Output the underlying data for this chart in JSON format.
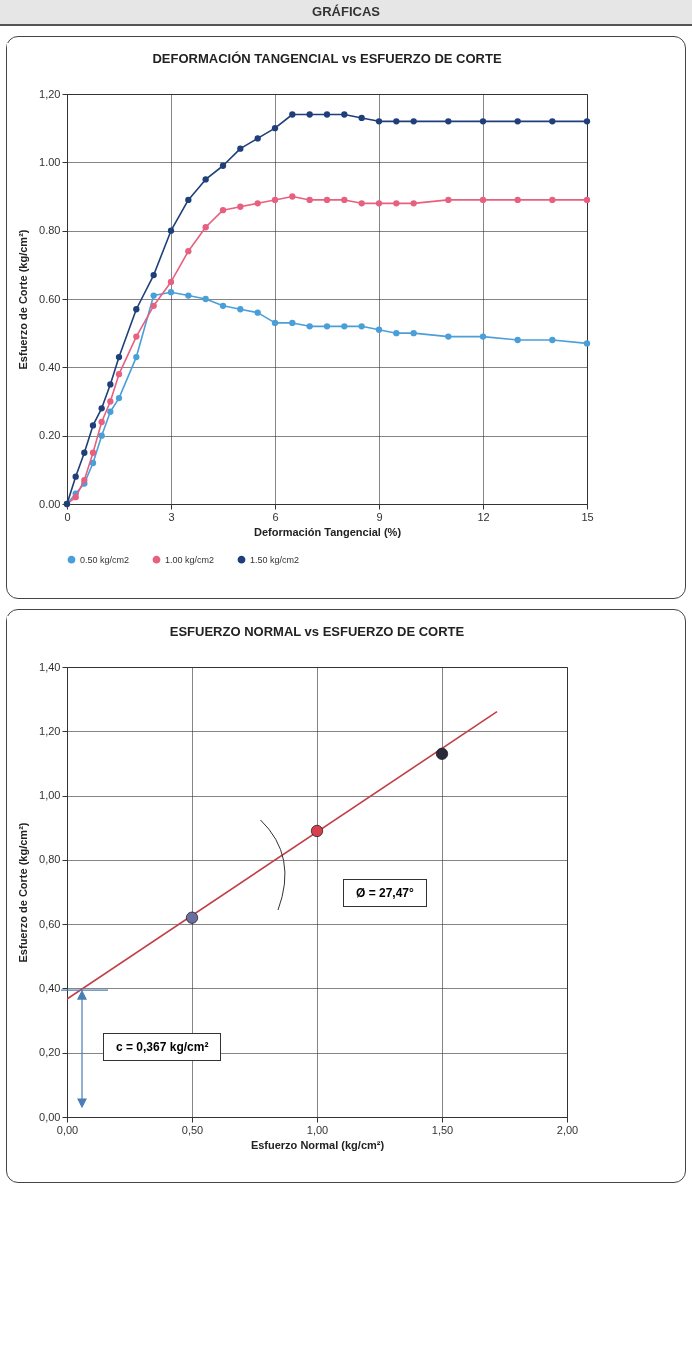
{
  "chart_data": [
    {
      "type": "line",
      "title": "DEFORMACIÓN TANGENCIAL vs ESFUERZO DE CORTE",
      "xlabel": "Deformación Tangencial (%)",
      "ylabel": "Esfuerzo de Corte (kg/cm²)",
      "annotations": [
        "GRÁFICAS"
      ],
      "x": [
        0,
        0.25,
        0.5,
        0.75,
        1,
        1.25,
        1.5,
        2,
        2.5,
        3,
        3.5,
        4,
        4.5,
        5,
        5.5,
        6,
        6.5,
        7,
        7.5,
        8,
        8.5,
        9,
        9.5,
        10,
        11,
        12,
        13,
        14,
        15
      ],
      "series": [
        {
          "name": "0.50 kg/cm2",
          "color": "#4a9fd8",
          "values": [
            0,
            0.03,
            0.06,
            0.12,
            0.2,
            0.27,
            0.31,
            0.43,
            0.61,
            0.62,
            0.61,
            0.6,
            0.58,
            0.57,
            0.56,
            0.53,
            0.53,
            0.52,
            0.52,
            0.52,
            0.52,
            0.51,
            0.5,
            0.5,
            0.49,
            0.49,
            0.48,
            0.48,
            0.47
          ]
        },
        {
          "name": "1.00 kg/cm2",
          "color": "#e8607f",
          "values": [
            0,
            0.02,
            0.07,
            0.15,
            0.24,
            0.3,
            0.38,
            0.49,
            0.58,
            0.65,
            0.74,
            0.81,
            0.86,
            0.87,
            0.88,
            0.89,
            0.9,
            0.89,
            0.89,
            0.89,
            0.88,
            0.88,
            0.88,
            0.88,
            0.89,
            0.89,
            0.89,
            0.89,
            0.89
          ]
        },
        {
          "name": "1.50 kg/cm2",
          "color": "#1f3f7a",
          "values": [
            0,
            0.08,
            0.15,
            0.23,
            0.28,
            0.35,
            0.43,
            0.57,
            0.67,
            0.8,
            0.89,
            0.95,
            0.99,
            1.04,
            1.07,
            1.1,
            1.14,
            1.14,
            1.14,
            1.14,
            1.13,
            1.12,
            1.12,
            1.12,
            1.12,
            1.12,
            1.12,
            1.12,
            1.12
          ]
        }
      ],
      "xlim": [
        0,
        15
      ],
      "xticks": [
        0,
        3,
        6,
        9,
        12,
        15
      ],
      "ylim": [
        0,
        1.2
      ],
      "yticks": [
        {
          "value": 0,
          "label": "0.00"
        },
        {
          "value": 0.2,
          "label": "0.20"
        },
        {
          "value": 0.4,
          "label": "0.40"
        },
        {
          "value": 0.6,
          "label": "0.60"
        },
        {
          "value": 0.8,
          "label": "0.80"
        },
        {
          "value": 1,
          "label": "1.00"
        },
        {
          "value": 1.2,
          "label": "1,20"
        }
      ],
      "grid": true,
      "legend": "bottom",
      "marker": "circle"
    },
    {
      "type": "scatter",
      "title": "ESFUERZO NORMAL vs ESFUERZO DE CORTE",
      "xlabel": "Esfuerzo Normal (kg/cm²)",
      "ylabel": "Esfuerzo de Corte (kg/cm²)",
      "annotations": [
        "Ø = 27,47°",
        "c = 0,367 kg/cm²"
      ],
      "series": [
        {
          "type": "line",
          "color": "#c0404a",
          "x": [
            0,
            1.72
          ],
          "values": [
            0.367,
            1.261
          ]
        },
        {
          "type": "scatter",
          "x": [
            0.5,
            1,
            1.5
          ],
          "values": [
            0.62,
            0.89,
            1.13
          ],
          "colors": [
            "#6b6fa0",
            "#d8404f",
            "#2a2a3a"
          ]
        }
      ],
      "xlim": [
        0,
        2
      ],
      "xticks": [
        {
          "value": 0,
          "label": "0,00"
        },
        {
          "value": 0.5,
          "label": "0,50"
        },
        {
          "value": 1,
          "label": "1,00"
        },
        {
          "value": 1.5,
          "label": "1,50"
        },
        {
          "value": 2,
          "label": "2,00"
        }
      ],
      "ylim": [
        0,
        1.4
      ],
      "yticks": [
        {
          "value": 0,
          "label": "0,00"
        },
        {
          "value": 0.2,
          "label": "0,20"
        },
        {
          "value": 0.4,
          "label": "0,40"
        },
        {
          "value": 0.6,
          "label": "0,60"
        },
        {
          "value": 0.8,
          "label": "0,80"
        },
        {
          "value": 1,
          "label": "1,00"
        },
        {
          "value": 1.2,
          "label": "1,20"
        },
        {
          "value": 1.4,
          "label": "1,40"
        }
      ],
      "grid": true
    }
  ]
}
